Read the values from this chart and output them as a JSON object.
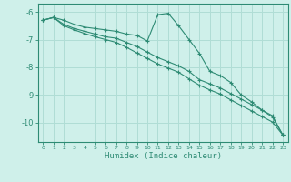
{
  "xlabel": "Humidex (Indice chaleur)",
  "background_color": "#cff0ea",
  "line_color": "#2e8b74",
  "grid_color": "#b0ddd5",
  "xlim": [
    -0.5,
    23.5
  ],
  "ylim": [
    -10.7,
    -5.7
  ],
  "yticks": [
    -10,
    -9,
    -8,
    -7,
    -6
  ],
  "xticks": [
    0,
    1,
    2,
    3,
    4,
    5,
    6,
    7,
    8,
    9,
    10,
    11,
    12,
    13,
    14,
    15,
    16,
    17,
    18,
    19,
    20,
    21,
    22,
    23
  ],
  "series": [
    {
      "x": [
        0,
        1,
        2,
        3,
        4,
        5,
        6,
        7,
        8,
        9,
        10,
        11,
        12,
        13,
        14,
        15,
        16,
        17,
        18,
        19,
        20,
        21,
        22,
        23
      ],
      "y": [
        -6.3,
        -6.2,
        -6.3,
        -6.45,
        -6.55,
        -6.6,
        -6.65,
        -6.7,
        -6.8,
        -6.85,
        -7.05,
        -6.1,
        -6.05,
        -6.5,
        -7.0,
        -7.5,
        -8.15,
        -8.3,
        -8.55,
        -9.0,
        -9.25,
        -9.55,
        -9.8,
        -10.45
      ]
    },
    {
      "x": [
        0,
        1,
        2,
        3,
        4,
        5,
        6,
        7,
        8,
        9,
        10,
        11,
        12,
        13,
        14,
        15,
        16,
        17,
        18,
        19,
        20,
        21,
        22,
        23
      ],
      "y": [
        -6.3,
        -6.2,
        -6.45,
        -6.6,
        -6.7,
        -6.8,
        -6.9,
        -6.95,
        -7.1,
        -7.25,
        -7.45,
        -7.65,
        -7.8,
        -7.95,
        -8.15,
        -8.45,
        -8.6,
        -8.75,
        -8.95,
        -9.15,
        -9.35,
        -9.55,
        -9.75,
        -10.45
      ]
    },
    {
      "x": [
        0,
        1,
        2,
        3,
        4,
        5,
        6,
        7,
        8,
        9,
        10,
        11,
        12,
        13,
        14,
        15,
        16,
        17,
        18,
        19,
        20,
        21,
        22,
        23
      ],
      "y": [
        -6.3,
        -6.2,
        -6.5,
        -6.65,
        -6.78,
        -6.9,
        -7.0,
        -7.1,
        -7.28,
        -7.48,
        -7.68,
        -7.88,
        -8.03,
        -8.18,
        -8.42,
        -8.65,
        -8.82,
        -8.97,
        -9.18,
        -9.38,
        -9.58,
        -9.78,
        -9.98,
        -10.45
      ]
    }
  ]
}
